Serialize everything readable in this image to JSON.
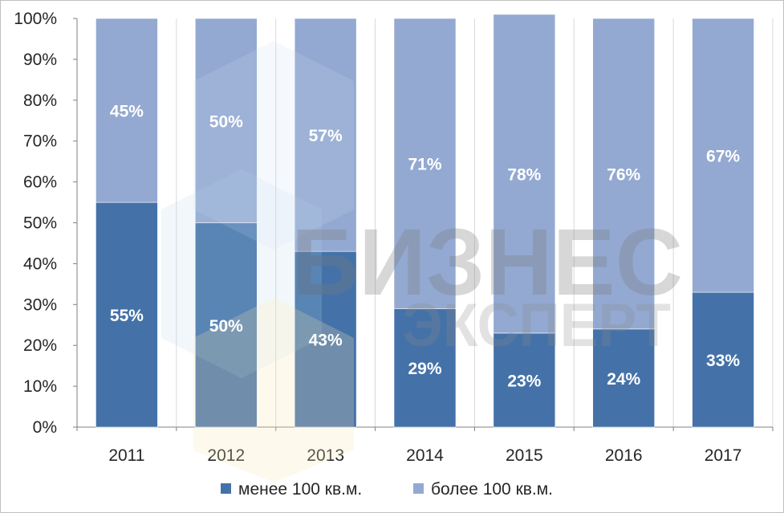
{
  "chart_data": {
    "type": "bar",
    "stacked": "percent",
    "categories": [
      "2011",
      "2012",
      "2013",
      "2014",
      "2015",
      "2016",
      "2017"
    ],
    "series": [
      {
        "name": "менее 100 кв.м.",
        "values": [
          55,
          50,
          43,
          29,
          23,
          24,
          33
        ],
        "labels": [
          "55%",
          "50%",
          "43%",
          "29%",
          "23%",
          "24%",
          "33%"
        ],
        "color": "#4472a8"
      },
      {
        "name": "более 100 кв.м.",
        "values": [
          45,
          50,
          57,
          71,
          78,
          76,
          67
        ],
        "labels": [
          "45%",
          "50%",
          "57%",
          "71%",
          "78%",
          "76%",
          "67%"
        ],
        "color": "#93a9d1"
      }
    ],
    "y_ticks": [
      "0%",
      "10%",
      "20%",
      "30%",
      "40%",
      "50%",
      "60%",
      "70%",
      "80%",
      "90%",
      "100%"
    ],
    "ylim": [
      0,
      100
    ],
    "grid": "vertical",
    "legend_position": "bottom",
    "title": "",
    "xlabel": "",
    "ylabel": ""
  },
  "watermark": {
    "line1": "БИЗНЕС",
    "line2": "ЭКСПЕРТ"
  }
}
